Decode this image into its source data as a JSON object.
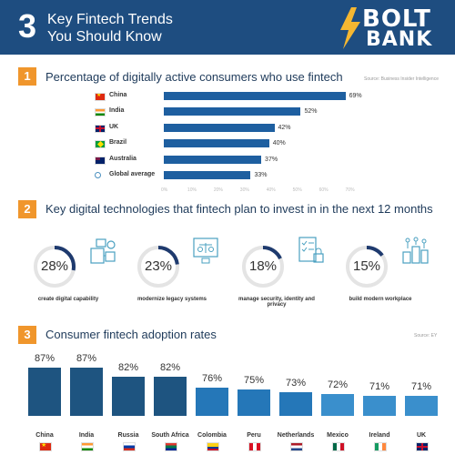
{
  "header": {
    "number": "3",
    "title_line1": "Key Fintech Trends",
    "title_line2": "You Should Know",
    "logo_top": "BOLT",
    "logo_bottom": "BANK"
  },
  "colors": {
    "header_bg": "#1e4d80",
    "accent": "#f0962c",
    "bar": "#1e5fa0",
    "ring_track": "#e4e4e4",
    "ring_fill": "#1e3a6e"
  },
  "section1": {
    "number": "1",
    "title": "Percentage of digitally active consumers who use fintech",
    "source": "Source: Business Insider Intelligence"
  },
  "section2": {
    "number": "2",
    "title": "Key digital technologies that fintech plan to invest in in the next 12 months"
  },
  "section3": {
    "number": "3",
    "title": "Consumer fintech adoption rates",
    "source": "Source: EY"
  },
  "chart_data": [
    {
      "type": "bar",
      "orientation": "horizontal",
      "categories": [
        "China",
        "India",
        "UK",
        "Brazil",
        "Australia",
        "Global average"
      ],
      "values": [
        69,
        52,
        42,
        40,
        37,
        33
      ],
      "value_labels": [
        "69%",
        "52%",
        "42%",
        "40%",
        "37%",
        "33%"
      ],
      "flags": [
        "flag-china-icon",
        "flag-india-icon",
        "flag-uk-icon",
        "flag-brazil-icon",
        "flag-australia-icon",
        "globe-icon"
      ],
      "ticks": [
        "0%",
        "10%",
        "20%",
        "30%",
        "40%",
        "50%",
        "60%",
        "70%"
      ],
      "xlim": [
        0,
        70
      ],
      "grid": false
    },
    {
      "type": "pie",
      "style": "donut",
      "categories": [
        "create digital capability",
        "modernize legacy systems",
        "manage security, identity and privacy",
        "build modern workplace"
      ],
      "values": [
        28,
        23,
        18,
        15
      ],
      "value_labels": [
        "28%",
        "23%",
        "18%",
        "15%"
      ],
      "icons": [
        "digital-capability-icon",
        "legacy-systems-icon",
        "security-checklist-icon",
        "modern-workplace-icon"
      ]
    },
    {
      "type": "bar",
      "orientation": "vertical",
      "categories": [
        "China",
        "India",
        "Russia",
        "South Africa",
        "Colombia",
        "Peru",
        "Netherlands",
        "Mexico",
        "Ireland",
        "UK"
      ],
      "values": [
        87,
        87,
        82,
        82,
        76,
        75,
        73,
        72,
        71,
        71
      ],
      "value_labels": [
        "87%",
        "87%",
        "82%",
        "82%",
        "76%",
        "75%",
        "73%",
        "72%",
        "71%",
        "71%"
      ],
      "flags": [
        "flag-china-icon",
        "flag-india-icon",
        "flag-russia-icon",
        "flag-south-africa-icon",
        "flag-colombia-icon",
        "flag-peru-icon",
        "flag-netherlands-icon",
        "flag-mexico-icon",
        "flag-ireland-icon",
        "flag-uk-icon"
      ],
      "ylim": [
        0,
        87
      ],
      "grid": false
    }
  ]
}
